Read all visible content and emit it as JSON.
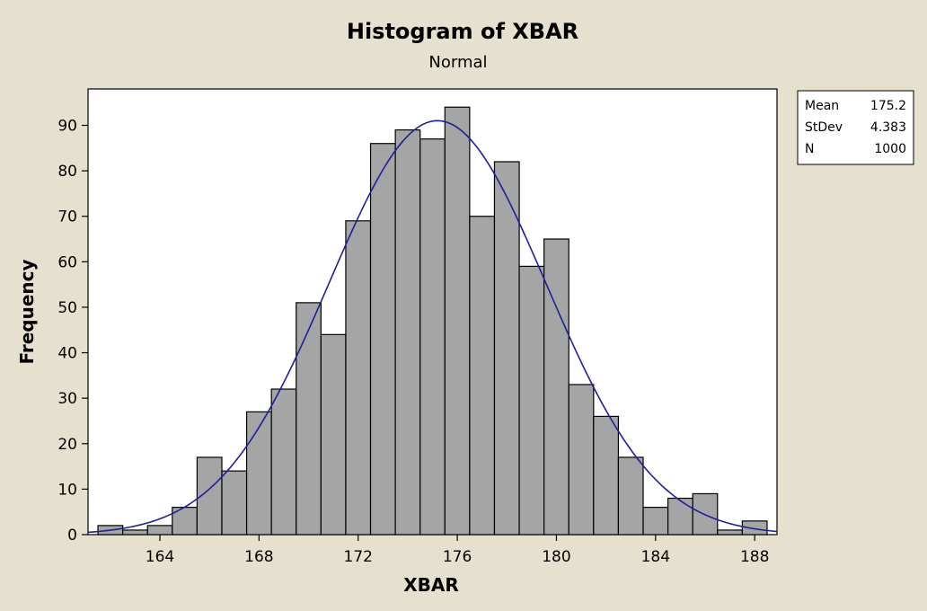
{
  "chart_data": {
    "type": "bar",
    "title": "Histogram of XBAR",
    "subtitle": "Normal",
    "xlabel": "XBAR",
    "ylabel": "Frequency",
    "bin_width": 1,
    "bin_centers": [
      162,
      163,
      164,
      165,
      166,
      167,
      168,
      169,
      170,
      171,
      172,
      173,
      174,
      175,
      176,
      177,
      178,
      179,
      180,
      181,
      182,
      183,
      184,
      185,
      186,
      187,
      188
    ],
    "values": [
      2,
      1,
      2,
      6,
      17,
      14,
      27,
      32,
      51,
      44,
      69,
      86,
      89,
      87,
      94,
      70,
      82,
      59,
      65,
      33,
      26,
      17,
      6,
      8,
      9,
      1,
      3
    ],
    "xlim": [
      161.1,
      188.9
    ],
    "ylim": [
      0,
      98
    ],
    "xticks": [
      164,
      168,
      172,
      176,
      180,
      184,
      188
    ],
    "yticks": [
      0,
      10,
      20,
      30,
      40,
      50,
      60,
      70,
      80,
      90
    ],
    "fit": {
      "type": "normal",
      "mean": 175.2,
      "stdev": 4.383,
      "n": 1000
    },
    "legend": [
      {
        "label": "Mean",
        "value": "175.2"
      },
      {
        "label": "StDev",
        "value": "4.383"
      },
      {
        "label": "N",
        "value": "1000"
      }
    ],
    "colors": {
      "bar": "#a5a5a5",
      "curve": "#1f1f9a",
      "background": "#e6e0cf"
    }
  }
}
